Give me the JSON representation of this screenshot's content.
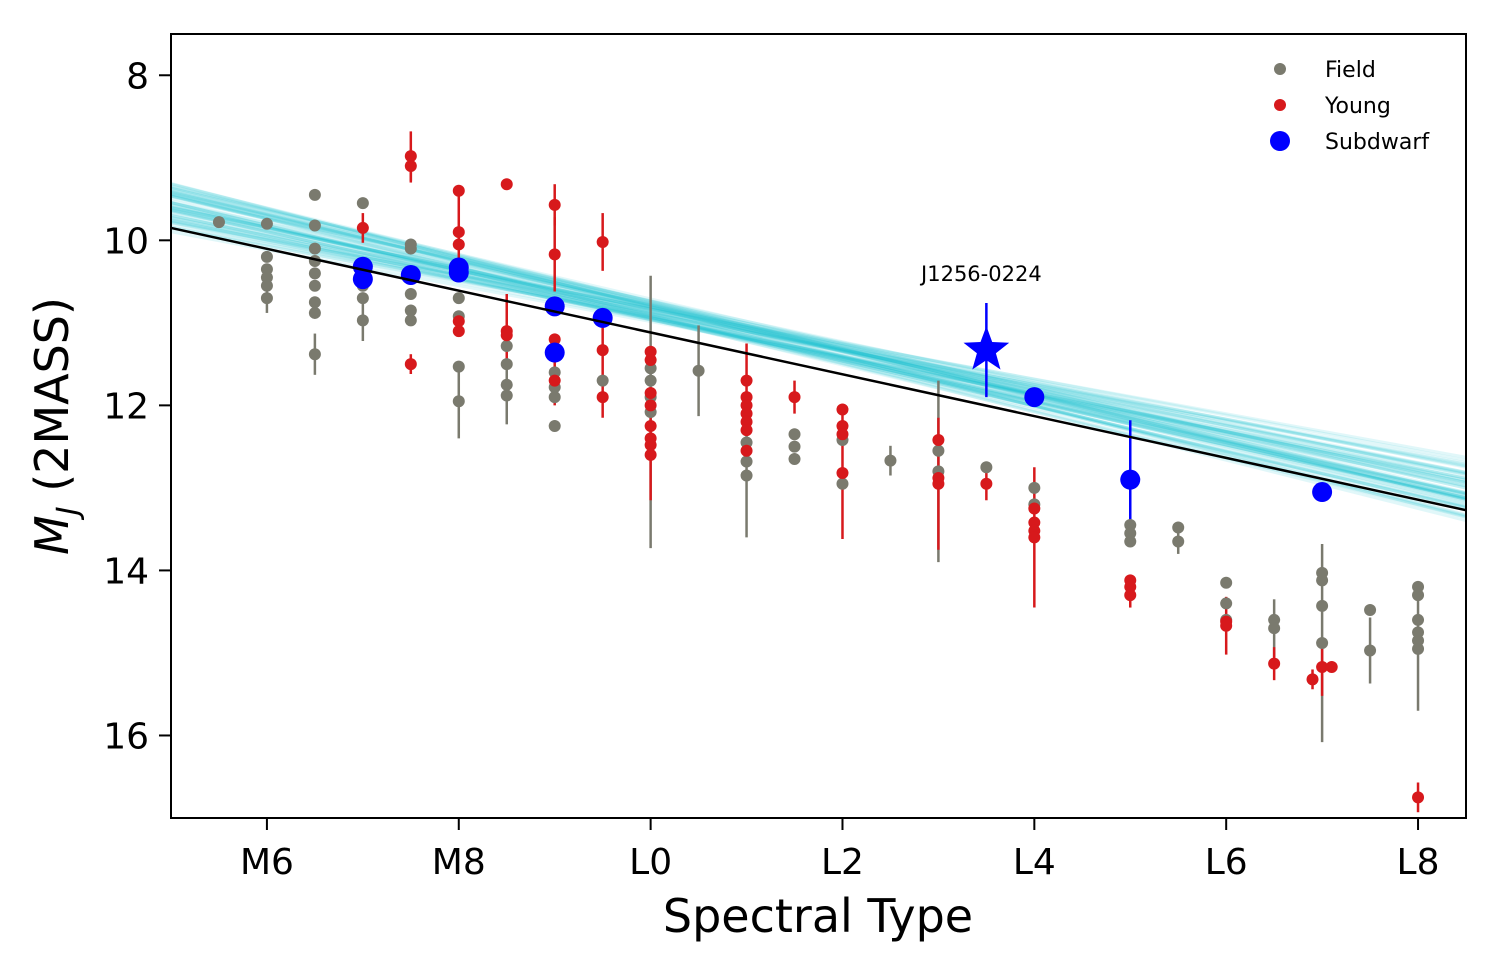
{
  "chart_data": {
    "type": "scatter",
    "xlabel": "Spectral Type",
    "ylabel_main": "M",
    "ylabel_sub": "J",
    "ylabel_rest": " (2MASS)",
    "xlim": [
      5.0,
      18.5
    ],
    "ylim": [
      17.0,
      7.5
    ],
    "y_inverted": true,
    "x_ticks": [
      {
        "value": 6,
        "label": "M6"
      },
      {
        "value": 8,
        "label": "M8"
      },
      {
        "value": 10,
        "label": "L0"
      },
      {
        "value": 12,
        "label": "L2"
      },
      {
        "value": 14,
        "label": "L4"
      },
      {
        "value": 16,
        "label": "L6"
      },
      {
        "value": 18,
        "label": "L8"
      }
    ],
    "y_ticks": [
      {
        "value": 8,
        "label": "8"
      },
      {
        "value": 10,
        "label": "10"
      },
      {
        "value": 12,
        "label": "12"
      },
      {
        "value": 14,
        "label": "14"
      },
      {
        "value": 16,
        "label": "16"
      }
    ],
    "legend_position": "top-right",
    "colors": {
      "field": "#7a7a6e",
      "young": "#d7191c",
      "subdwarf": "#0000ff",
      "fit": "#000000",
      "fit_band": "#17becf"
    },
    "fit_line": {
      "x": [
        5.0,
        18.5
      ],
      "y": [
        9.85,
        13.27
      ]
    },
    "fit_band": {
      "slope_range": [
        0.21,
        0.3
      ],
      "pivot_x": 10.8,
      "pivot_y": 11.05,
      "intercept_spread": 0.25,
      "n_lines": 60
    },
    "series": [
      {
        "name": "Field",
        "marker": "circle",
        "points": [
          {
            "x": 5.5,
            "y": 9.78
          },
          {
            "x": 6.0,
            "y": 9.8
          },
          {
            "x": 6.0,
            "y": 10.2
          },
          {
            "x": 6.0,
            "y": 10.35
          },
          {
            "x": 6.0,
            "y": 10.45
          },
          {
            "x": 6.0,
            "y": 10.55
          },
          {
            "x": 6.0,
            "y": 10.7,
            "err": 0.18
          },
          {
            "x": 6.5,
            "y": 9.45
          },
          {
            "x": 6.5,
            "y": 9.82
          },
          {
            "x": 6.5,
            "y": 10.1
          },
          {
            "x": 6.5,
            "y": 10.25
          },
          {
            "x": 6.5,
            "y": 10.4
          },
          {
            "x": 6.5,
            "y": 10.55
          },
          {
            "x": 6.5,
            "y": 10.75
          },
          {
            "x": 6.5,
            "y": 10.88
          },
          {
            "x": 6.5,
            "y": 11.38,
            "err": 0.25
          },
          {
            "x": 7.0,
            "y": 9.55
          },
          {
            "x": 7.0,
            "y": 10.45
          },
          {
            "x": 7.0,
            "y": 10.55
          },
          {
            "x": 7.0,
            "y": 10.7
          },
          {
            "x": 7.0,
            "y": 10.97,
            "err": 0.25
          },
          {
            "x": 7.5,
            "y": 10.05
          },
          {
            "x": 7.5,
            "y": 10.1
          },
          {
            "x": 7.5,
            "y": 10.45
          },
          {
            "x": 7.5,
            "y": 10.65
          },
          {
            "x": 7.5,
            "y": 10.85
          },
          {
            "x": 7.5,
            "y": 10.97
          },
          {
            "x": 8.0,
            "y": 10.7
          },
          {
            "x": 8.0,
            "y": 10.92
          },
          {
            "x": 8.0,
            "y": 11.53
          },
          {
            "x": 8.0,
            "y": 11.95,
            "err": 0.45
          },
          {
            "x": 8.5,
            "y": 11.28
          },
          {
            "x": 8.5,
            "y": 11.5
          },
          {
            "x": 8.5,
            "y": 11.75
          },
          {
            "x": 8.5,
            "y": 11.88,
            "err": 0.35
          },
          {
            "x": 9.0,
            "y": 11.6
          },
          {
            "x": 9.0,
            "y": 11.78
          },
          {
            "x": 9.0,
            "y": 11.9
          },
          {
            "x": 9.0,
            "y": 12.25
          },
          {
            "x": 9.5,
            "y": 11.7
          },
          {
            "x": 10.0,
            "y": 11.55
          },
          {
            "x": 10.0,
            "y": 11.7
          },
          {
            "x": 10.0,
            "y": 11.9
          },
          {
            "x": 10.0,
            "y": 12.08,
            "err": 1.65
          },
          {
            "x": 10.5,
            "y": 11.58,
            "err": 0.55
          },
          {
            "x": 11.0,
            "y": 12.45
          },
          {
            "x": 11.0,
            "y": 12.68
          },
          {
            "x": 11.0,
            "y": 12.85,
            "err": 0.75
          },
          {
            "x": 11.5,
            "y": 12.35
          },
          {
            "x": 11.5,
            "y": 12.5
          },
          {
            "x": 11.5,
            "y": 12.65
          },
          {
            "x": 12.0,
            "y": 12.42
          },
          {
            "x": 12.0,
            "y": 12.95
          },
          {
            "x": 12.5,
            "y": 12.67,
            "err": 0.18
          },
          {
            "x": 13.0,
            "y": 12.55
          },
          {
            "x": 13.0,
            "y": 12.8,
            "err": 1.1
          },
          {
            "x": 13.5,
            "y": 12.75
          },
          {
            "x": 14.0,
            "y": 13.0
          },
          {
            "x": 14.0,
            "y": 13.2
          },
          {
            "x": 15.0,
            "y": 13.45
          },
          {
            "x": 15.0,
            "y": 13.55
          },
          {
            "x": 15.0,
            "y": 13.65
          },
          {
            "x": 15.5,
            "y": 13.48
          },
          {
            "x": 15.5,
            "y": 13.65,
            "err": 0.15
          },
          {
            "x": 16.0,
            "y": 14.15
          },
          {
            "x": 16.0,
            "y": 14.4
          },
          {
            "x": 16.0,
            "y": 14.6
          },
          {
            "x": 16.5,
            "y": 14.6
          },
          {
            "x": 16.5,
            "y": 14.7,
            "err": 0.35
          },
          {
            "x": 17.0,
            "y": 14.03
          },
          {
            "x": 17.0,
            "y": 14.12
          },
          {
            "x": 17.0,
            "y": 14.43
          },
          {
            "x": 17.0,
            "y": 14.88,
            "err": 1.2
          },
          {
            "x": 17.5,
            "y": 14.48
          },
          {
            "x": 17.5,
            "y": 14.97,
            "err": 0.4
          },
          {
            "x": 18.0,
            "y": 14.2
          },
          {
            "x": 18.0,
            "y": 14.3
          },
          {
            "x": 18.0,
            "y": 14.6
          },
          {
            "x": 18.0,
            "y": 14.75
          },
          {
            "x": 18.0,
            "y": 14.85
          },
          {
            "x": 18.0,
            "y": 14.95,
            "err": 0.75
          }
        ]
      },
      {
        "name": "Young",
        "marker": "circle",
        "points": [
          {
            "x": 7.0,
            "y": 9.85,
            "err": 0.18
          },
          {
            "x": 7.5,
            "y": 8.98,
            "err": 0.3
          },
          {
            "x": 7.5,
            "y": 9.1,
            "err": 0.2
          },
          {
            "x": 7.5,
            "y": 11.5,
            "err": 0.12
          },
          {
            "x": 8.0,
            "y": 9.4
          },
          {
            "x": 8.0,
            "y": 9.9,
            "err": 0.55
          },
          {
            "x": 8.0,
            "y": 10.05
          },
          {
            "x": 8.0,
            "y": 10.98
          },
          {
            "x": 8.0,
            "y": 11.1
          },
          {
            "x": 8.5,
            "y": 9.32
          },
          {
            "x": 8.5,
            "y": 11.1,
            "err": 0.45
          },
          {
            "x": 8.5,
            "y": 11.15
          },
          {
            "x": 9.0,
            "y": 9.57,
            "err": 0.25
          },
          {
            "x": 9.0,
            "y": 10.17,
            "err": 0.45
          },
          {
            "x": 9.0,
            "y": 11.2
          },
          {
            "x": 9.0,
            "y": 11.7,
            "err": 0.3
          },
          {
            "x": 9.5,
            "y": 10.02,
            "err": 0.35
          },
          {
            "x": 9.5,
            "y": 11.33,
            "err": 0.35
          },
          {
            "x": 9.5,
            "y": 11.9,
            "err": 0.25
          },
          {
            "x": 10.0,
            "y": 11.35
          },
          {
            "x": 10.0,
            "y": 11.45
          },
          {
            "x": 10.0,
            "y": 11.85
          },
          {
            "x": 10.0,
            "y": 12.0
          },
          {
            "x": 10.0,
            "y": 12.25
          },
          {
            "x": 10.0,
            "y": 12.4
          },
          {
            "x": 10.0,
            "y": 12.48
          },
          {
            "x": 10.0,
            "y": 12.6,
            "err": 0.55
          },
          {
            "x": 11.0,
            "y": 11.7,
            "err": 0.45
          },
          {
            "x": 11.0,
            "y": 11.9
          },
          {
            "x": 11.0,
            "y": 12.0
          },
          {
            "x": 11.0,
            "y": 12.1
          },
          {
            "x": 11.0,
            "y": 12.2
          },
          {
            "x": 11.0,
            "y": 12.3
          },
          {
            "x": 11.0,
            "y": 12.55
          },
          {
            "x": 11.5,
            "y": 11.9,
            "err": 0.2
          },
          {
            "x": 12.0,
            "y": 12.05
          },
          {
            "x": 12.0,
            "y": 12.25
          },
          {
            "x": 12.0,
            "y": 12.35
          },
          {
            "x": 12.0,
            "y": 12.82,
            "err": 0.8
          },
          {
            "x": 13.0,
            "y": 12.42
          },
          {
            "x": 13.0,
            "y": 12.88
          },
          {
            "x": 13.0,
            "y": 12.95,
            "err": 0.8
          },
          {
            "x": 13.5,
            "y": 12.95,
            "err": 0.2
          },
          {
            "x": 14.0,
            "y": 13.25
          },
          {
            "x": 14.0,
            "y": 13.42
          },
          {
            "x": 14.0,
            "y": 13.52
          },
          {
            "x": 14.0,
            "y": 13.6,
            "err": 0.85
          },
          {
            "x": 15.0,
            "y": 14.12
          },
          {
            "x": 15.0,
            "y": 14.2
          },
          {
            "x": 15.0,
            "y": 14.3,
            "err": 0.15
          },
          {
            "x": 16.0,
            "y": 14.62
          },
          {
            "x": 16.0,
            "y": 14.67,
            "err": 0.35
          },
          {
            "x": 16.5,
            "y": 15.13,
            "err": 0.2
          },
          {
            "x": 16.9,
            "y": 15.32,
            "err": 0.12
          },
          {
            "x": 17.0,
            "y": 15.17,
            "err": 0.35
          },
          {
            "x": 17.1,
            "y": 15.17
          },
          {
            "x": 18.0,
            "y": 16.75,
            "err": 0.18
          }
        ]
      },
      {
        "name": "Subdwarf",
        "marker": "circle",
        "points": [
          {
            "x": 7.0,
            "y": 10.32
          },
          {
            "x": 7.0,
            "y": 10.47
          },
          {
            "x": 7.5,
            "y": 10.42
          },
          {
            "x": 8.0,
            "y": 10.33
          },
          {
            "x": 8.0,
            "y": 10.39
          },
          {
            "x": 9.0,
            "y": 10.8
          },
          {
            "x": 9.0,
            "y": 11.36
          },
          {
            "x": 9.5,
            "y": 10.94
          },
          {
            "x": 14.0,
            "y": 11.9
          },
          {
            "x": 15.0,
            "y": 12.9,
            "err": 0.72
          },
          {
            "x": 17.0,
            "y": 13.05
          }
        ]
      }
    ],
    "highlight": {
      "x": 13.5,
      "y": 11.33,
      "err": 0.57,
      "marker": "star",
      "label": "J1256-0224"
    },
    "legend": [
      {
        "label": "Field",
        "key": "field",
        "size": "small"
      },
      {
        "label": "Young",
        "key": "young",
        "size": "small"
      },
      {
        "label": "Subdwarf",
        "key": "subdwarf",
        "size": "large"
      }
    ]
  }
}
